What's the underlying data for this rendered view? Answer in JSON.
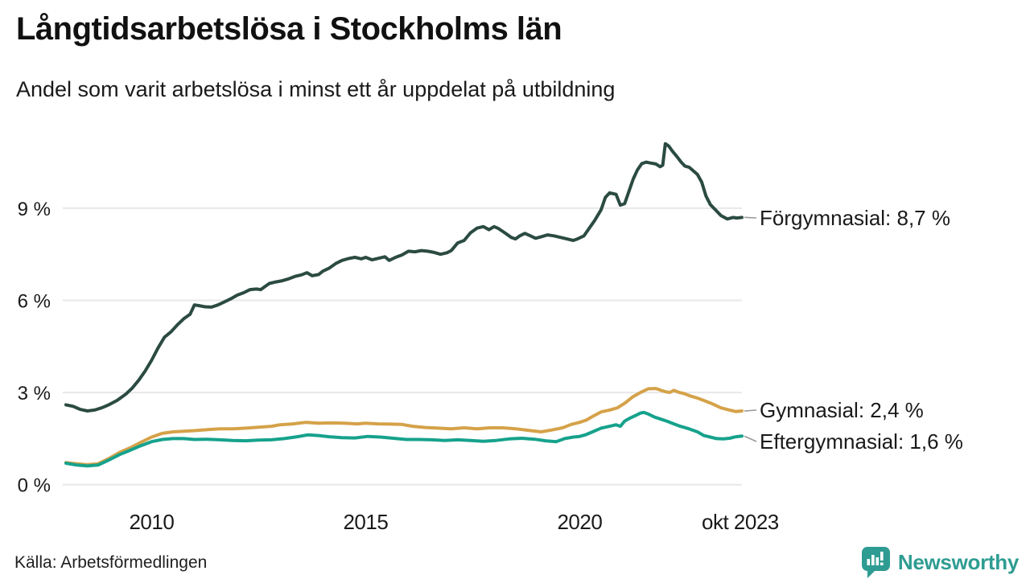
{
  "header": {
    "title": "Långtidsarbetslösa i Stockholms län",
    "subtitle": "Andel som varit arbetslösa i minst ett år uppdelat på utbildning"
  },
  "footer": {
    "source": "Källa: Arbetsförmedlingen",
    "brand": "Newsworthy",
    "brand_icon": "newsworthy-speech-bubble-bar-chart-icon",
    "brand_color": "#2e9c92"
  },
  "colors": {
    "forgymnasial": "#2b4b42",
    "gymnasial": "#d5a249",
    "eftergymnasial": "#16a28c",
    "gridline": "#e8e8ea",
    "connector": "#999999",
    "text": "#1a1a1a"
  },
  "chart_data": {
    "type": "line",
    "title": "Långtidsarbetslösa i Stockholms län",
    "subtitle": "Andel som varit arbetslösa i minst ett år uppdelat på utbildning",
    "unit": "%",
    "grid": true,
    "legend_position": "right-end-annotations",
    "x_axis": {
      "range": [
        2008,
        2023.83
      ],
      "ticks": [
        {
          "year": 2010,
          "label": "2010"
        },
        {
          "year": 2015,
          "label": "2015"
        },
        {
          "year": 2020,
          "label": "2020"
        },
        {
          "year": 2023.75,
          "label": "okt 2023"
        }
      ]
    },
    "y_axis": {
      "range": [
        0,
        11.5
      ],
      "ticks": [
        {
          "value": 0,
          "label": "0 %"
        },
        {
          "value": 3,
          "label": "3 %"
        },
        {
          "value": 6,
          "label": "6 %"
        },
        {
          "value": 9,
          "label": "9 %"
        }
      ]
    },
    "series": [
      {
        "name": "Förgymnasial",
        "color": "#2b4b42",
        "end_value_label": "8,7 %",
        "annotation": "Förgymnasial: 8,7 %",
        "points": [
          [
            2008.0,
            2.6
          ],
          [
            2008.17,
            2.55
          ],
          [
            2008.33,
            2.45
          ],
          [
            2008.5,
            2.4
          ],
          [
            2008.67,
            2.43
          ],
          [
            2008.83,
            2.5
          ],
          [
            2009.0,
            2.6
          ],
          [
            2009.2,
            2.75
          ],
          [
            2009.4,
            2.95
          ],
          [
            2009.55,
            3.15
          ],
          [
            2009.7,
            3.4
          ],
          [
            2009.85,
            3.7
          ],
          [
            2010.0,
            4.05
          ],
          [
            2010.15,
            4.45
          ],
          [
            2010.3,
            4.8
          ],
          [
            2010.45,
            4.97
          ],
          [
            2010.6,
            5.2
          ],
          [
            2010.75,
            5.4
          ],
          [
            2010.9,
            5.55
          ],
          [
            2011.0,
            5.85
          ],
          [
            2011.1,
            5.83
          ],
          [
            2011.25,
            5.79
          ],
          [
            2011.4,
            5.78
          ],
          [
            2011.55,
            5.85
          ],
          [
            2011.7,
            5.95
          ],
          [
            2011.85,
            6.05
          ],
          [
            2012.0,
            6.17
          ],
          [
            2012.15,
            6.25
          ],
          [
            2012.3,
            6.35
          ],
          [
            2012.45,
            6.37
          ],
          [
            2012.55,
            6.35
          ],
          [
            2012.65,
            6.45
          ],
          [
            2012.75,
            6.55
          ],
          [
            2012.9,
            6.6
          ],
          [
            2013.05,
            6.64
          ],
          [
            2013.2,
            6.7
          ],
          [
            2013.35,
            6.78
          ],
          [
            2013.5,
            6.83
          ],
          [
            2013.63,
            6.9
          ],
          [
            2013.75,
            6.8
          ],
          [
            2013.9,
            6.84
          ],
          [
            2014.0,
            6.95
          ],
          [
            2014.15,
            7.05
          ],
          [
            2014.3,
            7.2
          ],
          [
            2014.45,
            7.3
          ],
          [
            2014.6,
            7.36
          ],
          [
            2014.75,
            7.4
          ],
          [
            2014.9,
            7.35
          ],
          [
            2015.0,
            7.4
          ],
          [
            2015.15,
            7.32
          ],
          [
            2015.3,
            7.37
          ],
          [
            2015.45,
            7.42
          ],
          [
            2015.55,
            7.3
          ],
          [
            2015.7,
            7.4
          ],
          [
            2015.85,
            7.48
          ],
          [
            2016.0,
            7.6
          ],
          [
            2016.15,
            7.58
          ],
          [
            2016.3,
            7.62
          ],
          [
            2016.45,
            7.6
          ],
          [
            2016.6,
            7.56
          ],
          [
            2016.75,
            7.5
          ],
          [
            2016.9,
            7.55
          ],
          [
            2017.0,
            7.62
          ],
          [
            2017.15,
            7.87
          ],
          [
            2017.3,
            7.95
          ],
          [
            2017.45,
            8.2
          ],
          [
            2017.6,
            8.35
          ],
          [
            2017.75,
            8.4
          ],
          [
            2017.88,
            8.3
          ],
          [
            2018.0,
            8.4
          ],
          [
            2018.1,
            8.34
          ],
          [
            2018.25,
            8.2
          ],
          [
            2018.4,
            8.05
          ],
          [
            2018.5,
            8.0
          ],
          [
            2018.6,
            8.1
          ],
          [
            2018.72,
            8.18
          ],
          [
            2018.85,
            8.1
          ],
          [
            2018.97,
            8.02
          ],
          [
            2019.1,
            8.07
          ],
          [
            2019.25,
            8.13
          ],
          [
            2019.4,
            8.1
          ],
          [
            2019.55,
            8.05
          ],
          [
            2019.7,
            8.0
          ],
          [
            2019.85,
            7.95
          ],
          [
            2019.95,
            8.0
          ],
          [
            2020.1,
            8.1
          ],
          [
            2020.2,
            8.3
          ],
          [
            2020.35,
            8.6
          ],
          [
            2020.5,
            8.95
          ],
          [
            2020.6,
            9.35
          ],
          [
            2020.7,
            9.5
          ],
          [
            2020.85,
            9.45
          ],
          [
            2020.95,
            9.1
          ],
          [
            2021.05,
            9.15
          ],
          [
            2021.15,
            9.55
          ],
          [
            2021.25,
            9.95
          ],
          [
            2021.35,
            10.25
          ],
          [
            2021.45,
            10.45
          ],
          [
            2021.55,
            10.5
          ],
          [
            2021.65,
            10.47
          ],
          [
            2021.78,
            10.44
          ],
          [
            2021.88,
            10.35
          ],
          [
            2021.94,
            10.4
          ],
          [
            2022.0,
            11.1
          ],
          [
            2022.08,
            11.02
          ],
          [
            2022.17,
            10.85
          ],
          [
            2022.27,
            10.68
          ],
          [
            2022.37,
            10.5
          ],
          [
            2022.46,
            10.37
          ],
          [
            2022.56,
            10.33
          ],
          [
            2022.65,
            10.22
          ],
          [
            2022.75,
            10.1
          ],
          [
            2022.85,
            9.85
          ],
          [
            2022.95,
            9.4
          ],
          [
            2023.05,
            9.12
          ],
          [
            2023.17,
            8.95
          ],
          [
            2023.3,
            8.76
          ],
          [
            2023.45,
            8.65
          ],
          [
            2023.58,
            8.7
          ],
          [
            2023.67,
            8.68
          ],
          [
            2023.79,
            8.7
          ]
        ]
      },
      {
        "name": "Gymnasial",
        "color": "#d5a249",
        "end_value_label": "2,4 %",
        "annotation": "Gymnasial: 2,4 %",
        "points": [
          [
            2008.0,
            0.72
          ],
          [
            2008.25,
            0.68
          ],
          [
            2008.5,
            0.65
          ],
          [
            2008.75,
            0.68
          ],
          [
            2009.0,
            0.85
          ],
          [
            2009.25,
            1.05
          ],
          [
            2009.5,
            1.2
          ],
          [
            2009.75,
            1.38
          ],
          [
            2010.0,
            1.55
          ],
          [
            2010.25,
            1.67
          ],
          [
            2010.5,
            1.72
          ],
          [
            2010.75,
            1.74
          ],
          [
            2011.0,
            1.76
          ],
          [
            2011.3,
            1.79
          ],
          [
            2011.6,
            1.82
          ],
          [
            2011.9,
            1.82
          ],
          [
            2012.2,
            1.84
          ],
          [
            2012.5,
            1.87
          ],
          [
            2012.8,
            1.9
          ],
          [
            2013.0,
            1.95
          ],
          [
            2013.3,
            1.98
          ],
          [
            2013.6,
            2.03
          ],
          [
            2013.9,
            2.0
          ],
          [
            2014.2,
            2.01
          ],
          [
            2014.5,
            2.0
          ],
          [
            2014.8,
            1.98
          ],
          [
            2015.0,
            2.0
          ],
          [
            2015.3,
            1.98
          ],
          [
            2015.6,
            1.97
          ],
          [
            2015.85,
            1.96
          ],
          [
            2016.1,
            1.9
          ],
          [
            2016.4,
            1.86
          ],
          [
            2016.7,
            1.84
          ],
          [
            2017.0,
            1.82
          ],
          [
            2017.3,
            1.85
          ],
          [
            2017.6,
            1.82
          ],
          [
            2017.9,
            1.85
          ],
          [
            2018.2,
            1.85
          ],
          [
            2018.5,
            1.82
          ],
          [
            2018.8,
            1.77
          ],
          [
            2019.1,
            1.72
          ],
          [
            2019.35,
            1.78
          ],
          [
            2019.6,
            1.85
          ],
          [
            2019.8,
            1.96
          ],
          [
            2020.0,
            2.03
          ],
          [
            2020.15,
            2.1
          ],
          [
            2020.3,
            2.22
          ],
          [
            2020.5,
            2.37
          ],
          [
            2020.7,
            2.43
          ],
          [
            2020.88,
            2.5
          ],
          [
            2021.05,
            2.65
          ],
          [
            2021.25,
            2.87
          ],
          [
            2021.42,
            3.0
          ],
          [
            2021.6,
            3.12
          ],
          [
            2021.78,
            3.13
          ],
          [
            2021.9,
            3.07
          ],
          [
            2022.0,
            3.03
          ],
          [
            2022.1,
            3.0
          ],
          [
            2022.2,
            3.07
          ],
          [
            2022.33,
            3.0
          ],
          [
            2022.45,
            2.96
          ],
          [
            2022.6,
            2.88
          ],
          [
            2022.75,
            2.82
          ],
          [
            2022.92,
            2.73
          ],
          [
            2023.1,
            2.63
          ],
          [
            2023.3,
            2.5
          ],
          [
            2023.5,
            2.43
          ],
          [
            2023.65,
            2.38
          ],
          [
            2023.79,
            2.4
          ]
        ]
      },
      {
        "name": "Eftergymnasial",
        "color": "#16a28c",
        "end_value_label": "1,6 %",
        "annotation": "Eftergymnasial: 1,6 %",
        "points": [
          [
            2008.0,
            0.7
          ],
          [
            2008.25,
            0.64
          ],
          [
            2008.5,
            0.61
          ],
          [
            2008.75,
            0.64
          ],
          [
            2009.0,
            0.8
          ],
          [
            2009.25,
            0.98
          ],
          [
            2009.5,
            1.12
          ],
          [
            2009.75,
            1.27
          ],
          [
            2010.0,
            1.4
          ],
          [
            2010.25,
            1.47
          ],
          [
            2010.5,
            1.5
          ],
          [
            2010.75,
            1.5
          ],
          [
            2011.0,
            1.47
          ],
          [
            2011.3,
            1.48
          ],
          [
            2011.6,
            1.46
          ],
          [
            2011.9,
            1.44
          ],
          [
            2012.2,
            1.43
          ],
          [
            2012.5,
            1.45
          ],
          [
            2012.8,
            1.46
          ],
          [
            2013.1,
            1.5
          ],
          [
            2013.4,
            1.56
          ],
          [
            2013.65,
            1.62
          ],
          [
            2013.9,
            1.6
          ],
          [
            2014.15,
            1.56
          ],
          [
            2014.45,
            1.53
          ],
          [
            2014.75,
            1.52
          ],
          [
            2015.05,
            1.57
          ],
          [
            2015.35,
            1.55
          ],
          [
            2015.65,
            1.51
          ],
          [
            2015.95,
            1.47
          ],
          [
            2016.25,
            1.47
          ],
          [
            2016.55,
            1.46
          ],
          [
            2016.85,
            1.44
          ],
          [
            2017.15,
            1.46
          ],
          [
            2017.45,
            1.44
          ],
          [
            2017.75,
            1.41
          ],
          [
            2018.05,
            1.44
          ],
          [
            2018.35,
            1.49
          ],
          [
            2018.65,
            1.51
          ],
          [
            2018.95,
            1.48
          ],
          [
            2019.2,
            1.43
          ],
          [
            2019.45,
            1.4
          ],
          [
            2019.65,
            1.5
          ],
          [
            2019.85,
            1.55
          ],
          [
            2020.0,
            1.57
          ],
          [
            2020.15,
            1.63
          ],
          [
            2020.3,
            1.72
          ],
          [
            2020.5,
            1.84
          ],
          [
            2020.7,
            1.9
          ],
          [
            2020.85,
            1.95
          ],
          [
            2020.95,
            1.9
          ],
          [
            2021.05,
            2.07
          ],
          [
            2021.18,
            2.17
          ],
          [
            2021.3,
            2.25
          ],
          [
            2021.42,
            2.33
          ],
          [
            2021.5,
            2.35
          ],
          [
            2021.6,
            2.3
          ],
          [
            2021.75,
            2.2
          ],
          [
            2021.9,
            2.13
          ],
          [
            2022.05,
            2.06
          ],
          [
            2022.2,
            1.98
          ],
          [
            2022.35,
            1.9
          ],
          [
            2022.55,
            1.82
          ],
          [
            2022.75,
            1.72
          ],
          [
            2022.9,
            1.6
          ],
          [
            2023.05,
            1.55
          ],
          [
            2023.2,
            1.5
          ],
          [
            2023.35,
            1.49
          ],
          [
            2023.5,
            1.51
          ],
          [
            2023.65,
            1.56
          ],
          [
            2023.79,
            1.58
          ]
        ]
      }
    ]
  }
}
